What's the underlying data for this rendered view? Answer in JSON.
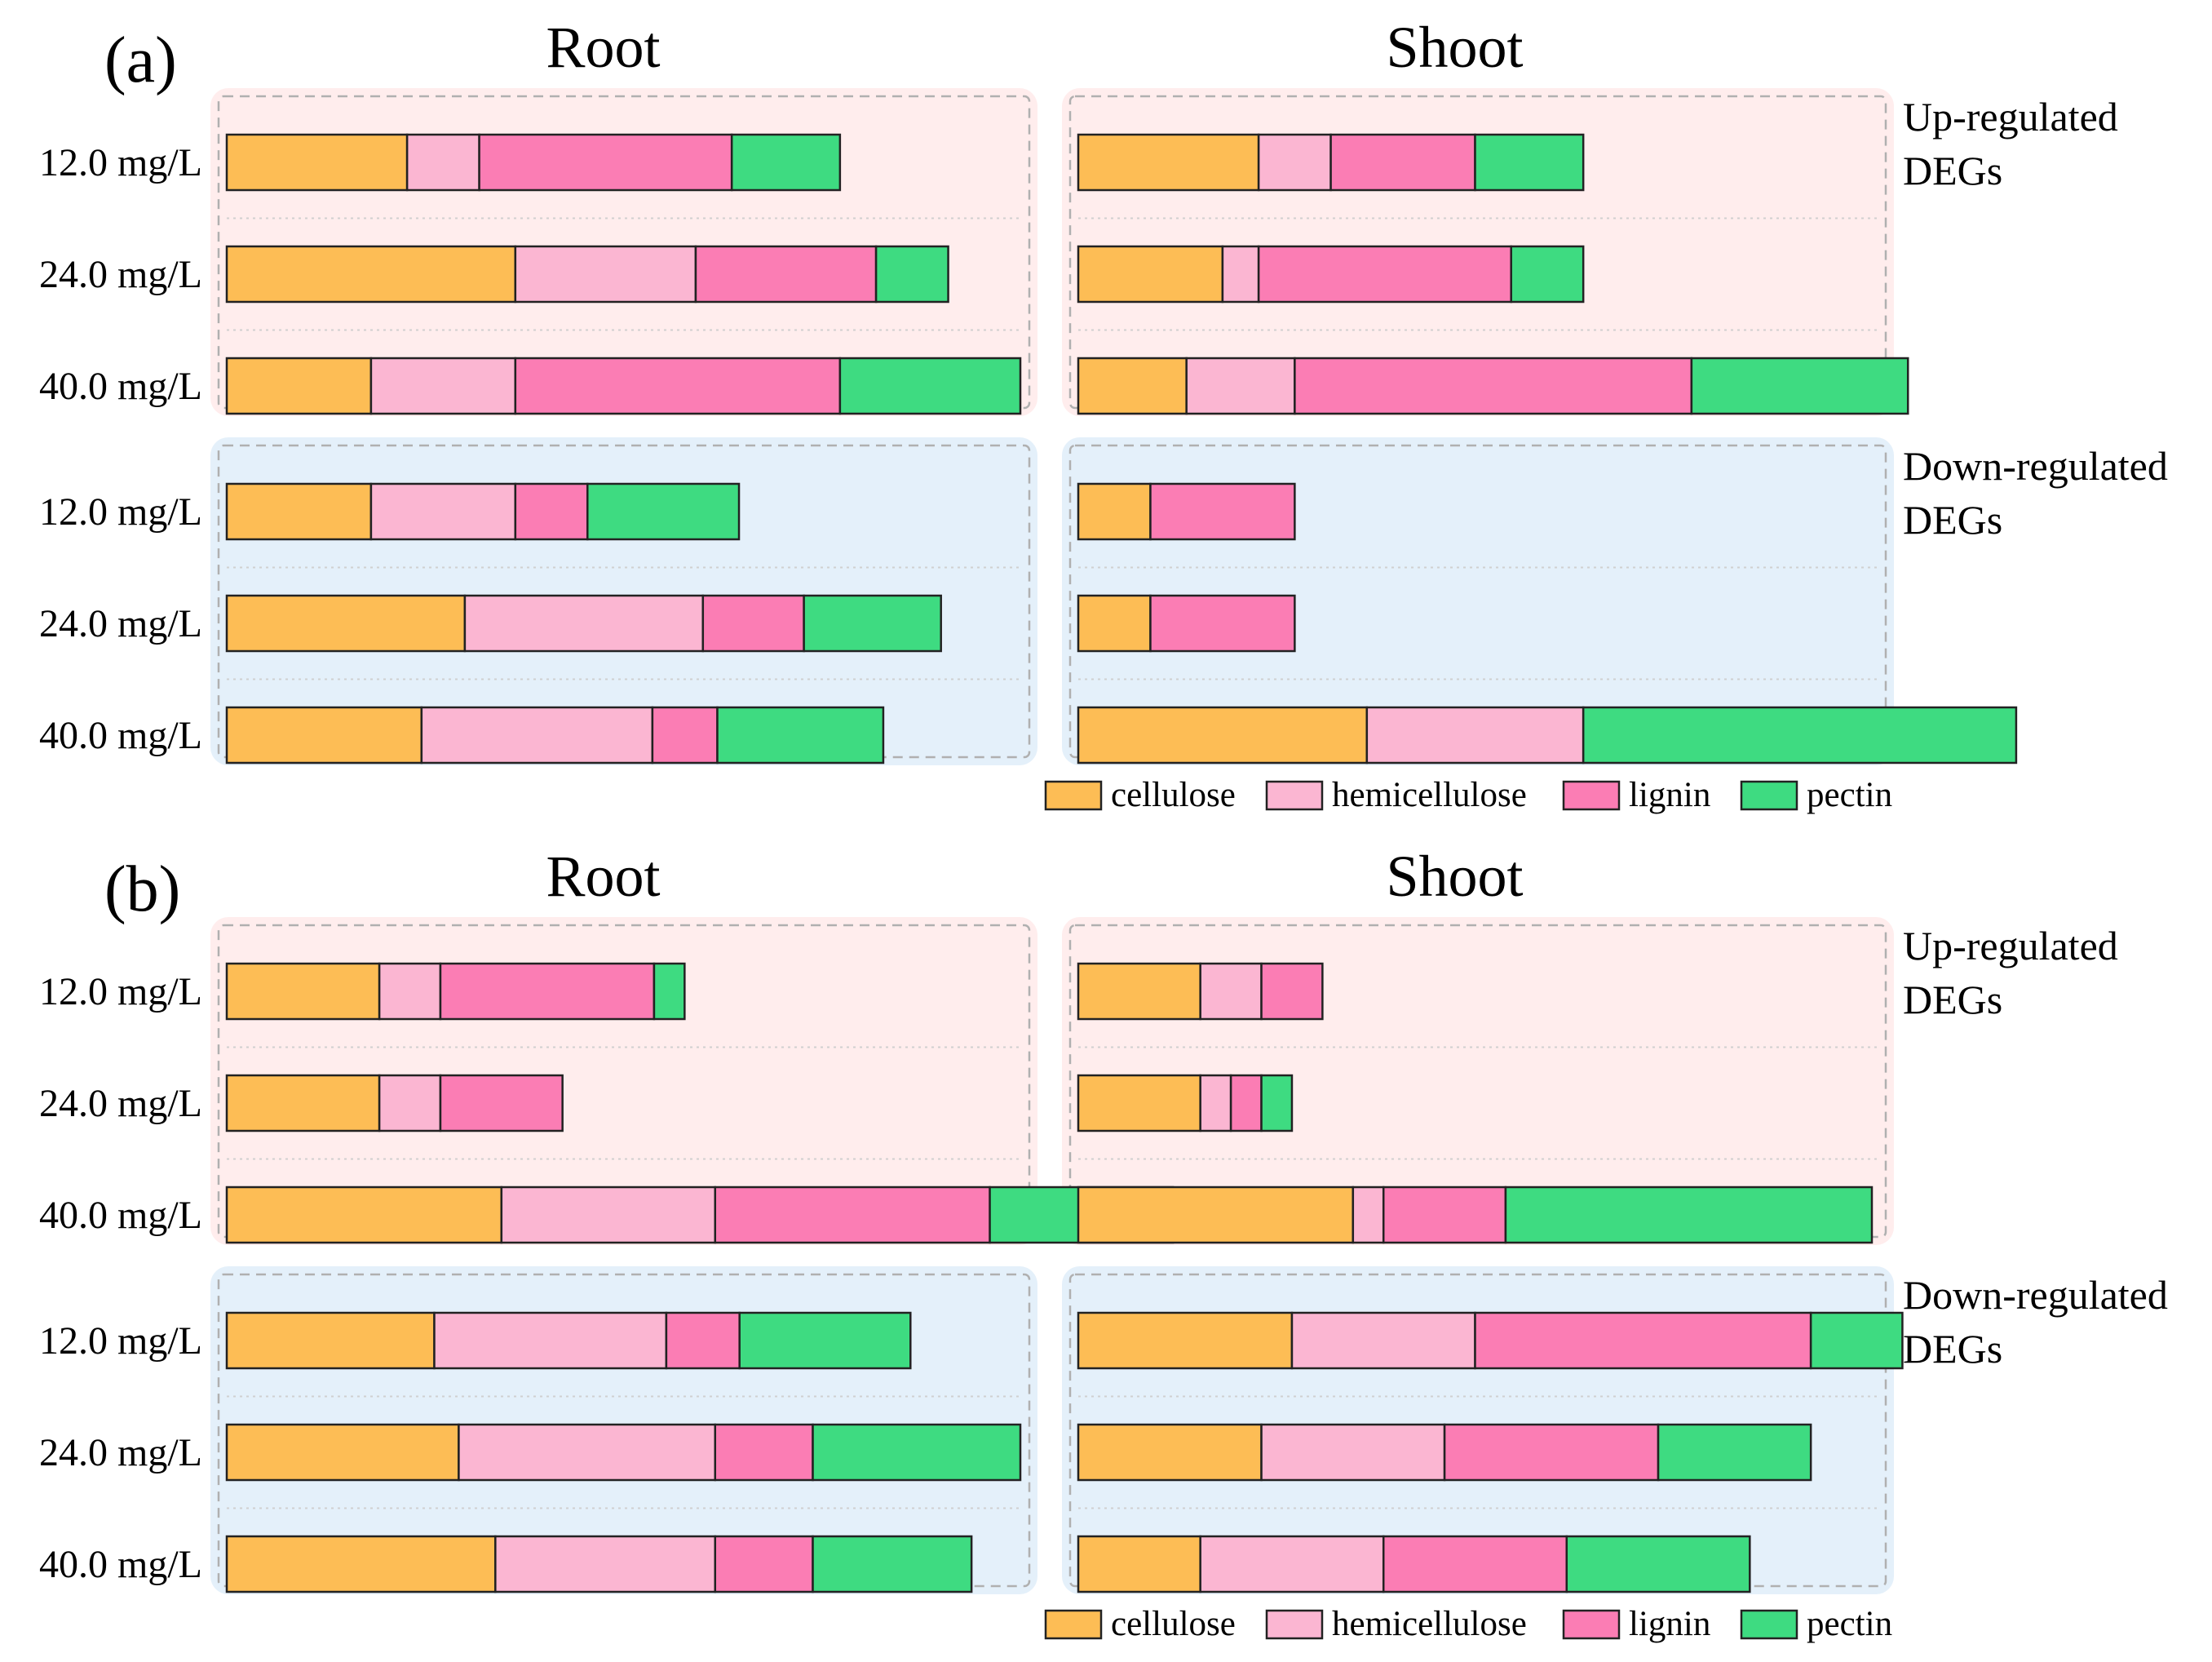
{
  "colors": {
    "cellulose": "#FDBD55",
    "hemicellulose": "#FBB6D2",
    "lignin": "#FB7DB4",
    "pectin": "#3EDB81",
    "up_bg": "#FFEDED",
    "down_bg": "#E4F0FA"
  },
  "chart_data": [
    {
      "type": "bar",
      "panel": "(a)",
      "components": [
        "cellulose",
        "hemicellulose",
        "lignin",
        "pectin"
      ],
      "legend": [
        "cellulose",
        "hemicellulose",
        "lignin",
        "pectin"
      ],
      "legend_position": "bottom-right",
      "columns": [
        "Root",
        "Shoot"
      ],
      "groups": [
        "Up-regulated DEGs",
        "Down-regulated DEGs"
      ],
      "categories": [
        "12.0 mg/L",
        "24.0 mg/L",
        "40.0 mg/L"
      ],
      "xlim": [
        0,
        11
      ],
      "data": {
        "Root": {
          "up": [
            [
              2.5,
              1.0,
              3.5,
              1.5
            ],
            [
              4.0,
              2.5,
              2.5,
              1.0
            ],
            [
              2.0,
              2.0,
              4.5,
              2.5
            ]
          ],
          "down": [
            [
              2.0,
              2.0,
              1.0,
              2.1
            ],
            [
              3.3,
              3.3,
              1.4,
              1.9
            ],
            [
              2.7,
              3.2,
              0.9,
              2.3
            ]
          ]
        },
        "Shoot": {
          "up": [
            [
              2.5,
              1.0,
              2.0,
              1.5
            ],
            [
              2.0,
              0.5,
              3.5,
              1.0
            ],
            [
              1.5,
              1.5,
              5.5,
              3.0
            ]
          ],
          "down": [
            [
              1.0,
              0.0,
              2.0,
              0.0
            ],
            [
              1.0,
              0.0,
              2.0,
              0.0
            ],
            [
              4.0,
              3.0,
              0.0,
              6.0
            ]
          ]
        }
      }
    },
    {
      "type": "bar",
      "panel": "(b)",
      "components": [
        "cellulose",
        "hemicellulose",
        "lignin",
        "pectin"
      ],
      "legend": [
        "cellulose",
        "hemicellulose",
        "lignin",
        "pectin"
      ],
      "legend_position": "bottom-right",
      "columns": [
        "Root",
        "Shoot"
      ],
      "groups": [
        "Up-regulated DEGs",
        "Down-regulated DEGs"
      ],
      "categories": [
        "12.0 mg/L",
        "24.0 mg/L",
        "40.0 mg/L"
      ],
      "xlim": [
        0,
        13
      ],
      "data": {
        "Root": {
          "up": [
            [
              2.5,
              1.0,
              3.5,
              0.5
            ],
            [
              2.5,
              1.0,
              2.0,
              0.0
            ],
            [
              4.5,
              3.5,
              4.5,
              3.0
            ]
          ],
          "down": [
            [
              3.4,
              3.8,
              1.2,
              2.8
            ],
            [
              3.8,
              4.2,
              1.6,
              3.4
            ],
            [
              4.4,
              3.6,
              1.6,
              2.6
            ]
          ]
        },
        "Shoot": {
          "up": [
            [
              2.0,
              1.0,
              1.0,
              0.0
            ],
            [
              2.0,
              0.5,
              0.5,
              0.5
            ],
            [
              4.5,
              0.5,
              2.0,
              6.0
            ]
          ],
          "down": [
            [
              3.5,
              3.0,
              5.5,
              1.5
            ],
            [
              3.0,
              3.0,
              3.5,
              2.5
            ],
            [
              2.0,
              3.0,
              3.0,
              3.0
            ]
          ]
        }
      }
    }
  ]
}
